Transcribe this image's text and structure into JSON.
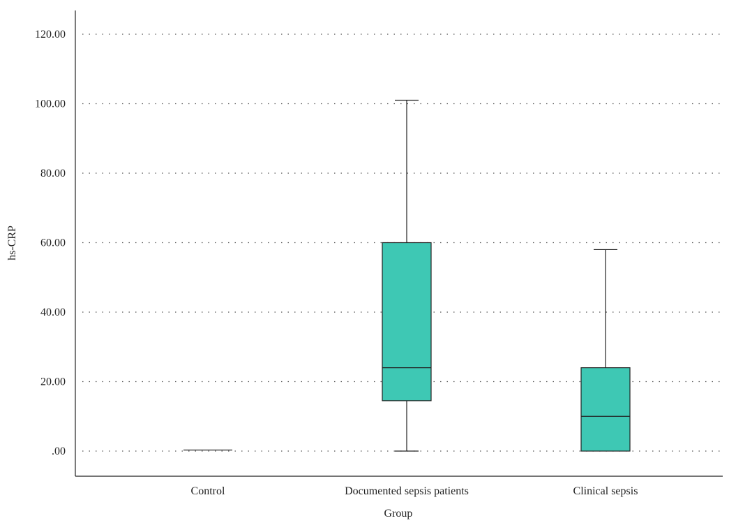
{
  "chart_data": {
    "type": "box",
    "xlabel": "Group",
    "ylabel": "hs-CRP",
    "ylim": [
      -6,
      126
    ],
    "yticks": [
      0,
      20,
      40,
      60,
      80,
      100,
      120
    ],
    "ytick_labels": [
      ".00",
      "20.00",
      "40.00",
      "60.00",
      "80.00",
      "100.00",
      "120.00"
    ],
    "grid": true,
    "box_color": "#3ec8b4",
    "categories": [
      "Control",
      "Documented sepsis patients",
      "Clinical sepsis"
    ],
    "boxes": [
      {
        "min": 0.3,
        "q1": 0.3,
        "median": 0.3,
        "q3": 0.3,
        "max": 0.3
      },
      {
        "min": 0.0,
        "q1": 14.5,
        "median": 24.0,
        "q3": 60.0,
        "max": 101.0
      },
      {
        "min": 0.0,
        "q1": 0.0,
        "median": 10.0,
        "q3": 24.0,
        "max": 58.0
      }
    ]
  }
}
